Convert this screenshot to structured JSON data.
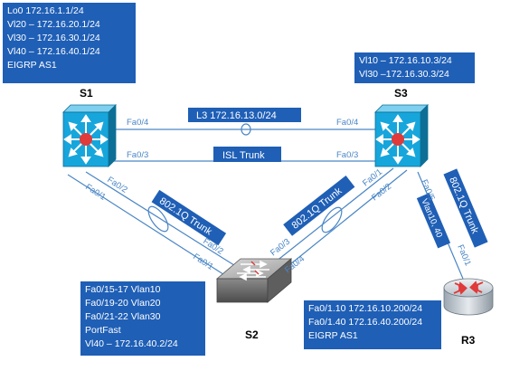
{
  "devices": {
    "s1": {
      "name": "S1",
      "config": [
        "Lo0 172.16.1.1/24",
        "Vl20 – 172.16.20.1/24",
        "Vl30 – 172.16.30.1/24",
        "Vl40 – 172.16.40.1/24",
        "EIGRP AS1"
      ]
    },
    "s3": {
      "name": "S3",
      "config": [
        "Vl10 – 172.16.10.3/24",
        "Vl30 –172.16.30.3/24"
      ]
    },
    "s2": {
      "name": "S2",
      "config": [
        "Fa0/15-17 Vlan10",
        "Fa0/19-20 Vlan20",
        "Fa0/21-22 Vlan30",
        "PortFast",
        "Vl40 – 172.16.40.2/24"
      ]
    },
    "r3": {
      "name": "R3",
      "config": [
        "Fa0/1.10 172.16.10.200/24",
        "Fa0/1.40 172.16.40.200/24",
        "EIGRP AS1"
      ]
    }
  },
  "links": {
    "l3": "L3 172.16.13.0/24",
    "isl": "ISL Trunk",
    "trunk_s1_s2": "802.1Q Trunk",
    "trunk_s2_s3": "802.1Q Trunk",
    "trunk_s3_r3": "802.1Q Trunk",
    "vlan_s3_r3": "Vlan10, 40"
  },
  "ports": {
    "s1_fa04": "Fa0/4",
    "s1_fa03": "Fa0/3",
    "s3_fa04": "Fa0/4",
    "s3_fa03": "Fa0/3",
    "s1_fa02": "Fa0/2",
    "s1_fa01": "Fa0/1",
    "s2_fa02": "Fa0/2",
    "s2_fa01": "Fa0/1",
    "s2_fa03": "Fa0/3",
    "s2_fa04": "Fa0/4",
    "s3_fa01": "Fa0/1",
    "s3_fa02": "Fa0/2",
    "s3_fa05": "Fa0/5",
    "r3_fa01": "Fa0/1"
  },
  "colors": {
    "box_fill": "#1f5fb6",
    "link_line": "#4a86c5",
    "switch_face": "#16a6dc",
    "switch_arrows": "#ffffff",
    "switch_core": "#e03a3a"
  }
}
